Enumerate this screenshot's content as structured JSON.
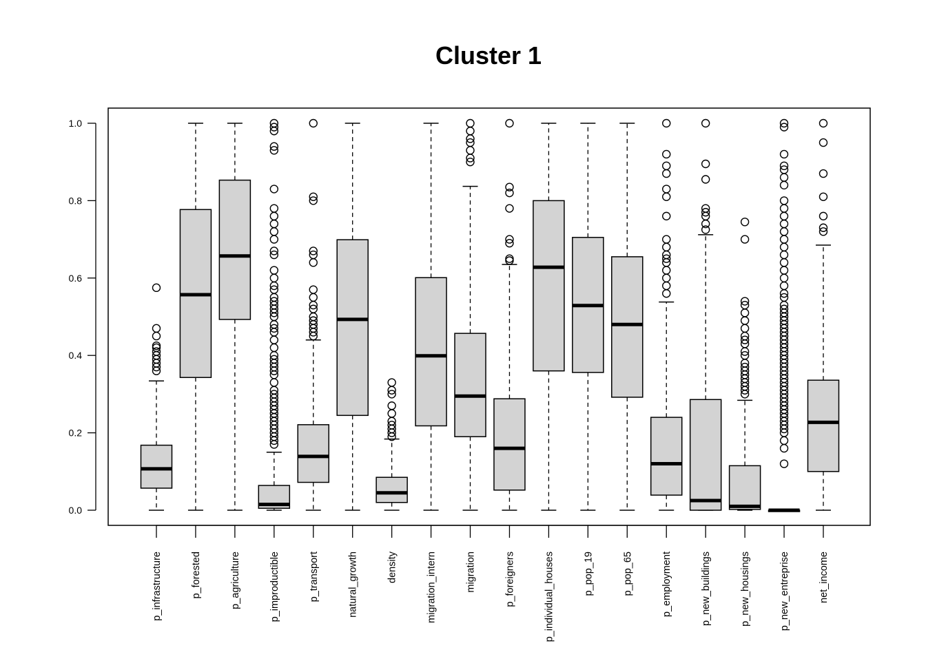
{
  "chart_data": {
    "type": "boxplot",
    "title": "Cluster 1",
    "xlabel": "",
    "ylabel": "",
    "ylim": [
      0,
      1
    ],
    "yticks": [
      0.0,
      0.2,
      0.4,
      0.6,
      0.8,
      1.0
    ],
    "ytick_labels": [
      "0.0",
      "0.2",
      "0.4",
      "0.6",
      "0.8",
      "1.0"
    ],
    "box_color": "#d3d3d3",
    "categories": [
      "p_infrastructure",
      "p_forested",
      "p_agriculture",
      "p_improductible",
      "p_transport",
      "natural_growth",
      "density",
      "migration_intern",
      "migration",
      "p_foreigners",
      "p_individual_houses",
      "p_pop_19",
      "p_pop_65",
      "p_employment",
      "p_new_buildings",
      "p_new_housings",
      "p_new_entreprise",
      "net_income"
    ],
    "boxes": [
      {
        "whisker_low": 0.0,
        "q1": 0.057,
        "median": 0.107,
        "q3": 0.168,
        "whisker_high": 0.334,
        "outliers": [
          0.36,
          0.37,
          0.38,
          0.39,
          0.4,
          0.41,
          0.42,
          0.425,
          0.45,
          0.47,
          0.575
        ]
      },
      {
        "whisker_low": 0.0,
        "q1": 0.343,
        "median": 0.557,
        "q3": 0.777,
        "whisker_high": 1.0,
        "outliers": []
      },
      {
        "whisker_low": 0.0,
        "q1": 0.493,
        "median": 0.657,
        "q3": 0.853,
        "whisker_high": 1.0,
        "outliers": []
      },
      {
        "whisker_low": 0.0,
        "q1": 0.005,
        "median": 0.015,
        "q3": 0.064,
        "whisker_high": 0.15,
        "outliers": [
          0.17,
          0.18,
          0.19,
          0.2,
          0.21,
          0.22,
          0.23,
          0.24,
          0.25,
          0.26,
          0.27,
          0.28,
          0.29,
          0.3,
          0.31,
          0.33,
          0.35,
          0.36,
          0.37,
          0.38,
          0.39,
          0.4,
          0.42,
          0.44,
          0.46,
          0.47,
          0.48,
          0.5,
          0.51,
          0.52,
          0.53,
          0.54,
          0.55,
          0.57,
          0.58,
          0.6,
          0.62,
          0.66,
          0.67,
          0.7,
          0.72,
          0.74,
          0.76,
          0.78,
          0.83,
          0.93,
          0.94,
          0.98,
          0.99,
          1.0
        ]
      },
      {
        "whisker_low": 0.0,
        "q1": 0.072,
        "median": 0.139,
        "q3": 0.221,
        "whisker_high": 0.44,
        "outliers": [
          0.45,
          0.46,
          0.47,
          0.48,
          0.49,
          0.5,
          0.52,
          0.53,
          0.55,
          0.57,
          0.64,
          0.66,
          0.67,
          0.8,
          0.81,
          1.0
        ]
      },
      {
        "whisker_low": 0.0,
        "q1": 0.245,
        "median": 0.493,
        "q3": 0.699,
        "whisker_high": 1.0,
        "outliers": []
      },
      {
        "whisker_low": 0.0,
        "q1": 0.02,
        "median": 0.045,
        "q3": 0.085,
        "whisker_high": 0.184,
        "outliers": [
          0.19,
          0.2,
          0.21,
          0.22,
          0.23,
          0.25,
          0.27,
          0.3,
          0.31,
          0.33
        ]
      },
      {
        "whisker_low": 0.0,
        "q1": 0.218,
        "median": 0.399,
        "q3": 0.601,
        "whisker_high": 1.0,
        "outliers": []
      },
      {
        "whisker_low": 0.0,
        "q1": 0.19,
        "median": 0.295,
        "q3": 0.457,
        "whisker_high": 0.837,
        "outliers": [
          0.9,
          0.91,
          0.93,
          0.95,
          0.96,
          0.98,
          1.0
        ]
      },
      {
        "whisker_low": 0.0,
        "q1": 0.052,
        "median": 0.16,
        "q3": 0.288,
        "whisker_high": 0.635,
        "outliers": [
          0.645,
          0.65,
          0.69,
          0.7,
          0.78,
          0.82,
          0.835,
          1.0
        ]
      },
      {
        "whisker_low": 0.0,
        "q1": 0.36,
        "median": 0.628,
        "q3": 0.8,
        "whisker_high": 1.0,
        "outliers": []
      },
      {
        "whisker_low": 0.0,
        "q1": 0.356,
        "median": 0.529,
        "q3": 0.705,
        "whisker_high": 1.0,
        "outliers": []
      },
      {
        "whisker_low": 0.0,
        "q1": 0.292,
        "median": 0.48,
        "q3": 0.655,
        "whisker_high": 1.0,
        "outliers": []
      },
      {
        "whisker_low": 0.0,
        "q1": 0.039,
        "median": 0.12,
        "q3": 0.24,
        "whisker_high": 0.538,
        "outliers": [
          0.56,
          0.58,
          0.6,
          0.62,
          0.64,
          0.65,
          0.66,
          0.68,
          0.7,
          0.76,
          0.81,
          0.83,
          0.87,
          0.89,
          0.92,
          1.0
        ]
      },
      {
        "whisker_low": 0.0,
        "q1": 0.0,
        "median": 0.025,
        "q3": 0.286,
        "whisker_high": 0.712,
        "outliers": [
          0.725,
          0.74,
          0.76,
          0.77,
          0.78,
          0.855,
          0.895,
          1.0
        ]
      },
      {
        "whisker_low": 0.0,
        "q1": 0.002,
        "median": 0.01,
        "q3": 0.115,
        "whisker_high": 0.284,
        "outliers": [
          0.3,
          0.31,
          0.32,
          0.33,
          0.34,
          0.35,
          0.36,
          0.37,
          0.38,
          0.4,
          0.41,
          0.43,
          0.44,
          0.45,
          0.47,
          0.49,
          0.51,
          0.53,
          0.54,
          0.7,
          0.745
        ]
      },
      {
        "whisker_low": 0.0,
        "q1": 0.0,
        "median": 0.0,
        "q3": 0.0,
        "whisker_high": 0.0,
        "outliers": [
          0.12,
          0.16,
          0.18,
          0.2,
          0.21,
          0.22,
          0.23,
          0.24,
          0.25,
          0.26,
          0.27,
          0.28,
          0.29,
          0.3,
          0.31,
          0.32,
          0.33,
          0.34,
          0.35,
          0.36,
          0.37,
          0.38,
          0.39,
          0.4,
          0.41,
          0.42,
          0.43,
          0.44,
          0.45,
          0.46,
          0.47,
          0.48,
          0.49,
          0.5,
          0.51,
          0.52,
          0.53,
          0.55,
          0.56,
          0.58,
          0.6,
          0.62,
          0.64,
          0.66,
          0.68,
          0.7,
          0.72,
          0.74,
          0.76,
          0.78,
          0.8,
          0.84,
          0.86,
          0.88,
          0.89,
          0.92,
          0.99,
          1.0
        ]
      },
      {
        "whisker_low": 0.0,
        "q1": 0.1,
        "median": 0.227,
        "q3": 0.336,
        "whisker_high": 0.685,
        "outliers": [
          0.72,
          0.73,
          0.76,
          0.81,
          0.87,
          0.95,
          1.0
        ]
      }
    ]
  }
}
